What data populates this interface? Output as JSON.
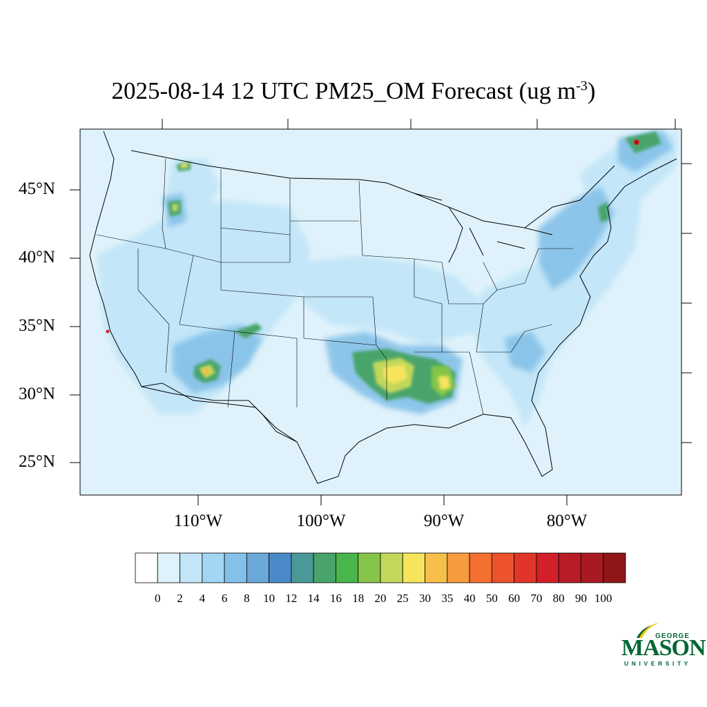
{
  "title": {
    "main": "2025-08-14 12 UTC PM25_OM Forecast (ug m",
    "exponent": "-3",
    "close": ")"
  },
  "map": {
    "region": "Contiguous United States",
    "variable": "PM25_OM",
    "units": "ug m-3",
    "background_color": "#dff2fb",
    "lat_labels": [
      "45°N",
      "40°N",
      "35°N",
      "30°N",
      "25°N"
    ],
    "lon_labels": [
      "110°W",
      "100°W",
      "90°W",
      "80°W"
    ],
    "hotspots": [
      {
        "area": "East Texas / Louisiana",
        "level": "25-35"
      },
      {
        "area": "Mississippi",
        "level": "20-30"
      },
      {
        "area": "Arizona / New Mexico",
        "level": "20-35"
      },
      {
        "area": "Idaho",
        "level": "18-25"
      },
      {
        "area": "Quebec",
        "level": "35-60"
      },
      {
        "area": "Southern California coast",
        "level": "60-100"
      }
    ]
  },
  "colorbar": {
    "ticks": [
      "0",
      "2",
      "4",
      "6",
      "8",
      "10",
      "12",
      "14",
      "16",
      "18",
      "20",
      "25",
      "30",
      "35",
      "40",
      "50",
      "60",
      "70",
      "80",
      "90",
      "100"
    ],
    "colors": [
      "#ffffff",
      "#dff2fb",
      "#c2e6f8",
      "#a2d6f3",
      "#84c1e8",
      "#6aa8da",
      "#4b8ac8",
      "#4a9898",
      "#48a46c",
      "#4ab54a",
      "#86c54a",
      "#c2d85a",
      "#f6e45c",
      "#f6bf4a",
      "#f69c3e",
      "#f37030",
      "#ec522b",
      "#e03528",
      "#d21f29",
      "#b81c25",
      "#a81a22",
      "#8f1617"
    ]
  },
  "logo": {
    "line1": "GEORGE",
    "line2": "MASON",
    "line3": "UNIVERSITY",
    "color": "#006633",
    "accent": "#f2c300"
  }
}
